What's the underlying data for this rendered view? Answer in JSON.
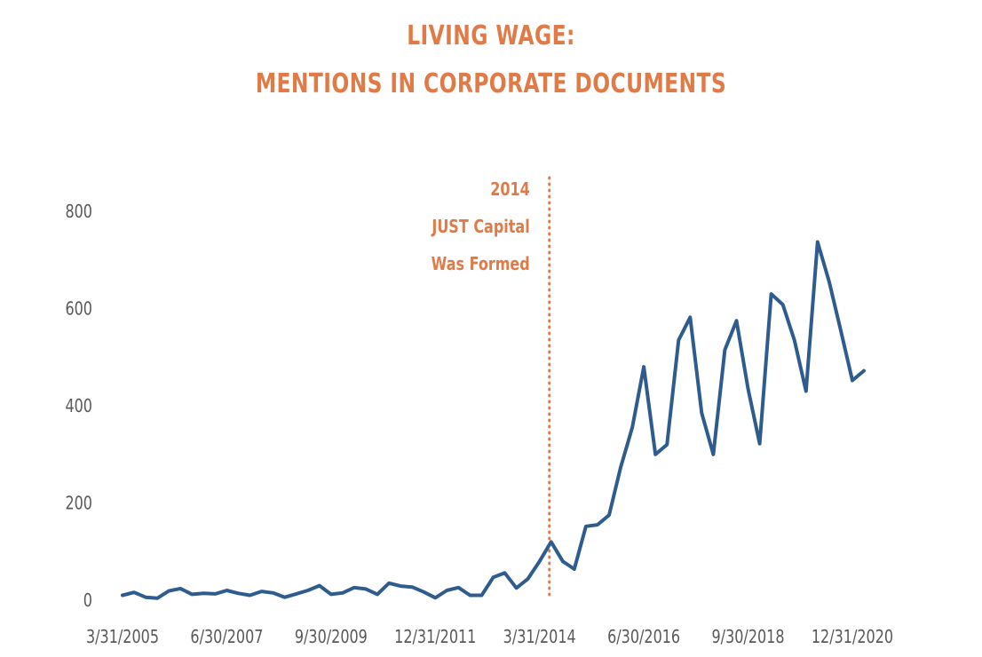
{
  "colors": {
    "title": "#E07B48",
    "line": "#2F5C8F",
    "annotation": "#E07B48",
    "axis_text": "#595959"
  },
  "chart_data": {
    "type": "line",
    "title_lines": [
      "LIVING WAGE:",
      "MENTIONS IN CORPORATE DOCUMENTS"
    ],
    "xlabel": "",
    "ylabel": "",
    "ylim": [
      0,
      800
    ],
    "yticks": [
      0,
      200,
      400,
      600,
      800
    ],
    "x_tick_labels": [
      "3/31/2005",
      "6/30/2007",
      "9/30/2009",
      "12/31/2011",
      "3/31/2014",
      "6/30/2016",
      "9/30/2018",
      "12/31/2020"
    ],
    "x_tick_index": [
      0,
      9,
      18,
      27,
      36,
      45,
      54,
      63
    ],
    "grid": false,
    "legend": "none",
    "series": [
      {
        "values": [
          10,
          16,
          6,
          4,
          19,
          24,
          12,
          14,
          13,
          20,
          14,
          10,
          18,
          15,
          6,
          13,
          20,
          30,
          12,
          15,
          26,
          23,
          12,
          35,
          29,
          27,
          17,
          5,
          20,
          26,
          10,
          10,
          47,
          56,
          25,
          44,
          80,
          120,
          80,
          64,
          152,
          155,
          175,
          273,
          355,
          480,
          300,
          320,
          535,
          582,
          385,
          300,
          515,
          575,
          435,
          322,
          630,
          608,
          535,
          430,
          737,
          655,
          555,
          452,
          472
        ]
      }
    ],
    "annotation": {
      "lines": [
        "2014",
        "JUST Capital",
        "Was Formed"
      ],
      "x_index": 37
    }
  }
}
